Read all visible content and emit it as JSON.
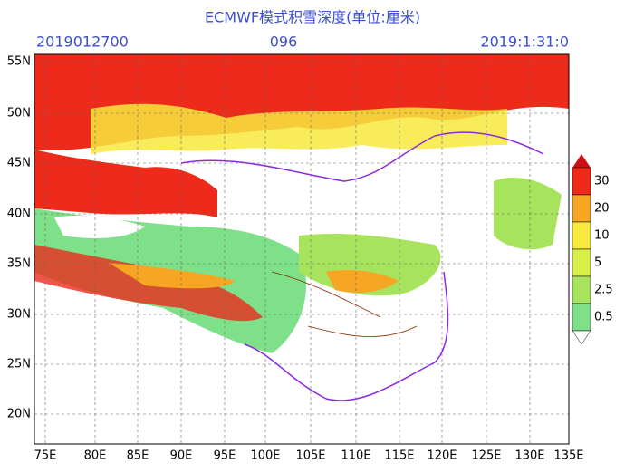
{
  "header": {
    "title": "ECMWF模式积雪深度(单位:厘米)",
    "init_time": "2019012700",
    "forecast_hour": "096",
    "valid_time": "2019:1:31:0"
  },
  "latitude_labels": [
    "55N",
    "50N",
    "45N",
    "40N",
    "35N",
    "30N",
    "25N",
    "20N"
  ],
  "longitude_labels": [
    "75E",
    "80E",
    "85E",
    "90E",
    "95E",
    "100E",
    "105E",
    "110E",
    "115E",
    "120E",
    "125E",
    "130E",
    "135E"
  ],
  "legend": {
    "labels": [
      "30",
      "20",
      "10",
      "5",
      "2.5",
      "0.5"
    ]
  }
}
